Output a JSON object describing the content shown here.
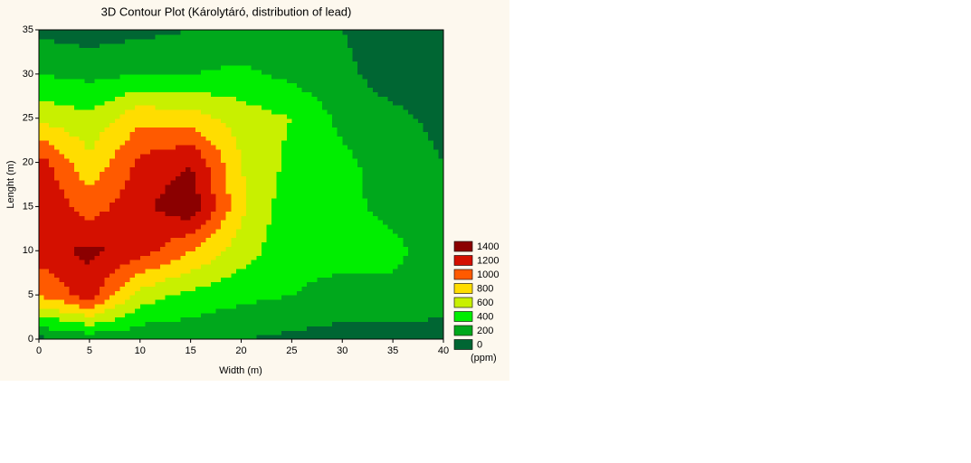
{
  "chart_data": {
    "type": "contour",
    "title": "3D Contour Plot (Károlytáró, distribution of lead)",
    "x_label": "Width (m)",
    "y_label": "Lenght (m)",
    "x": [
      0,
      5,
      10,
      15,
      20,
      25,
      30,
      35,
      40
    ],
    "y": [
      0,
      5,
      10,
      15,
      20,
      25,
      30,
      35
    ],
    "z": [
      [
        150,
        250,
        250,
        250,
        200,
        150,
        100,
        100,
        150
      ],
      [
        1000,
        1300,
        700,
        550,
        450,
        400,
        350,
        350,
        250
      ],
      [
        1300,
        1450,
        1300,
        1000,
        700,
        450,
        450,
        450,
        300
      ],
      [
        1400,
        1100,
        1350,
        1550,
        850,
        450,
        450,
        350,
        200
      ],
      [
        1300,
        850,
        1250,
        1400,
        800,
        550,
        450,
        300,
        200
      ],
      [
        750,
        650,
        950,
        900,
        700,
        600,
        350,
        250,
        150
      ],
      [
        400,
        350,
        400,
        400,
        450,
        350,
        250,
        100,
        100
      ],
      [
        150,
        100,
        150,
        200,
        250,
        250,
        200,
        100,
        100
      ]
    ],
    "xlim": [
      0,
      40
    ],
    "ylim": [
      0,
      35
    ],
    "xticks": [
      0,
      5,
      10,
      15,
      20,
      25,
      30,
      35,
      40
    ],
    "yticks": [
      0,
      5,
      10,
      15,
      20,
      25,
      30,
      35
    ],
    "levels": [
      0,
      200,
      400,
      600,
      800,
      1000,
      1200,
      1400
    ],
    "level_colors": [
      "#006633",
      "#00a81c",
      "#00ee00",
      "#c8f000",
      "#ffdd00",
      "#ff5a00",
      "#d41000",
      "#8b0000"
    ],
    "legend_unit": "(ppm)"
  }
}
